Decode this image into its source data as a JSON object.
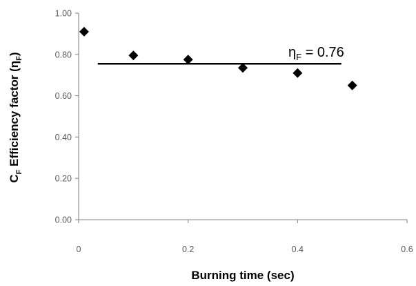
{
  "chart_data": {
    "type": "scatter",
    "xlabel": "Burning time (sec)",
    "ylabel_main": "C",
    "ylabel_main_sub": "F",
    "ylabel_rest": " Efficiency factor (η",
    "ylabel_rest_sub": "F",
    "ylabel_close": ")",
    "xlim": [
      0,
      0.6
    ],
    "ylim": [
      0.0,
      1.0
    ],
    "x_ticks": [
      0,
      0.2,
      0.4,
      0.6
    ],
    "x_tick_labels": [
      "0",
      "0.2",
      "0.4",
      "0.6"
    ],
    "y_ticks": [
      0.0,
      0.2,
      0.4,
      0.6,
      0.8,
      1.0
    ],
    "y_tick_labels": [
      "0.00",
      "0.20",
      "0.40",
      "0.60",
      "0.80",
      "1.00"
    ],
    "series": [
      {
        "marker": "diamond",
        "color": "#000000",
        "x": [
          0.01,
          0.1,
          0.2,
          0.3,
          0.4,
          0.5
        ],
        "y": [
          0.91,
          0.795,
          0.775,
          0.735,
          0.71,
          0.65
        ]
      }
    ],
    "reference_line": {
      "y": 0.755,
      "x_start": 0.035,
      "x_end": 0.48,
      "color": "#000000"
    },
    "annotation": {
      "main": "η",
      "sub": "F",
      "rest": " = 0.76"
    },
    "grid": false
  }
}
